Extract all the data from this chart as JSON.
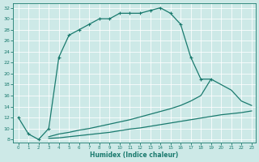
{
  "bg_color": "#cde9e7",
  "line_color": "#1a7a6e",
  "xlabel": "Humidex (Indice chaleur)",
  "xlim_min": -0.5,
  "xlim_max": 23.4,
  "ylim_min": 7.5,
  "ylim_max": 32.8,
  "xticks": [
    0,
    1,
    2,
    3,
    4,
    5,
    6,
    7,
    8,
    9,
    10,
    11,
    12,
    13,
    14,
    15,
    16,
    17,
    18,
    19,
    20,
    21,
    22,
    23
  ],
  "yticks": [
    8,
    10,
    12,
    14,
    16,
    18,
    20,
    22,
    24,
    26,
    28,
    30,
    32
  ],
  "curve1_x": [
    0,
    1,
    2,
    3,
    4,
    5,
    6,
    7,
    8,
    9,
    10,
    11,
    12,
    13,
    14,
    15,
    16,
    17,
    18,
    19
  ],
  "curve1_y": [
    12,
    9,
    8,
    10,
    23,
    27,
    28,
    29,
    30,
    30,
    31,
    31,
    31,
    31.5,
    32,
    31,
    29,
    23,
    19,
    19
  ],
  "curve2_x": [
    3,
    4,
    5,
    6,
    7,
    8,
    9,
    10,
    11,
    12,
    13,
    14,
    15,
    16,
    17,
    18,
    19,
    20,
    21,
    22,
    23
  ],
  "curve2_y": [
    8.5,
    9,
    9.3,
    9.7,
    10,
    10.4,
    10.8,
    11.2,
    11.6,
    12.1,
    12.6,
    13.1,
    13.6,
    14.2,
    15,
    16,
    19,
    18,
    17,
    15,
    14.2
  ],
  "curve3_x": [
    3,
    4,
    5,
    6,
    7,
    8,
    9,
    10,
    11,
    12,
    13,
    14,
    15,
    16,
    17,
    18,
    19,
    20,
    21,
    22,
    23
  ],
  "curve3_y": [
    8.2,
    8.3,
    8.5,
    8.7,
    8.9,
    9.1,
    9.3,
    9.6,
    9.9,
    10.1,
    10.4,
    10.7,
    11.0,
    11.3,
    11.6,
    11.9,
    12.2,
    12.5,
    12.7,
    12.9,
    13.2
  ]
}
